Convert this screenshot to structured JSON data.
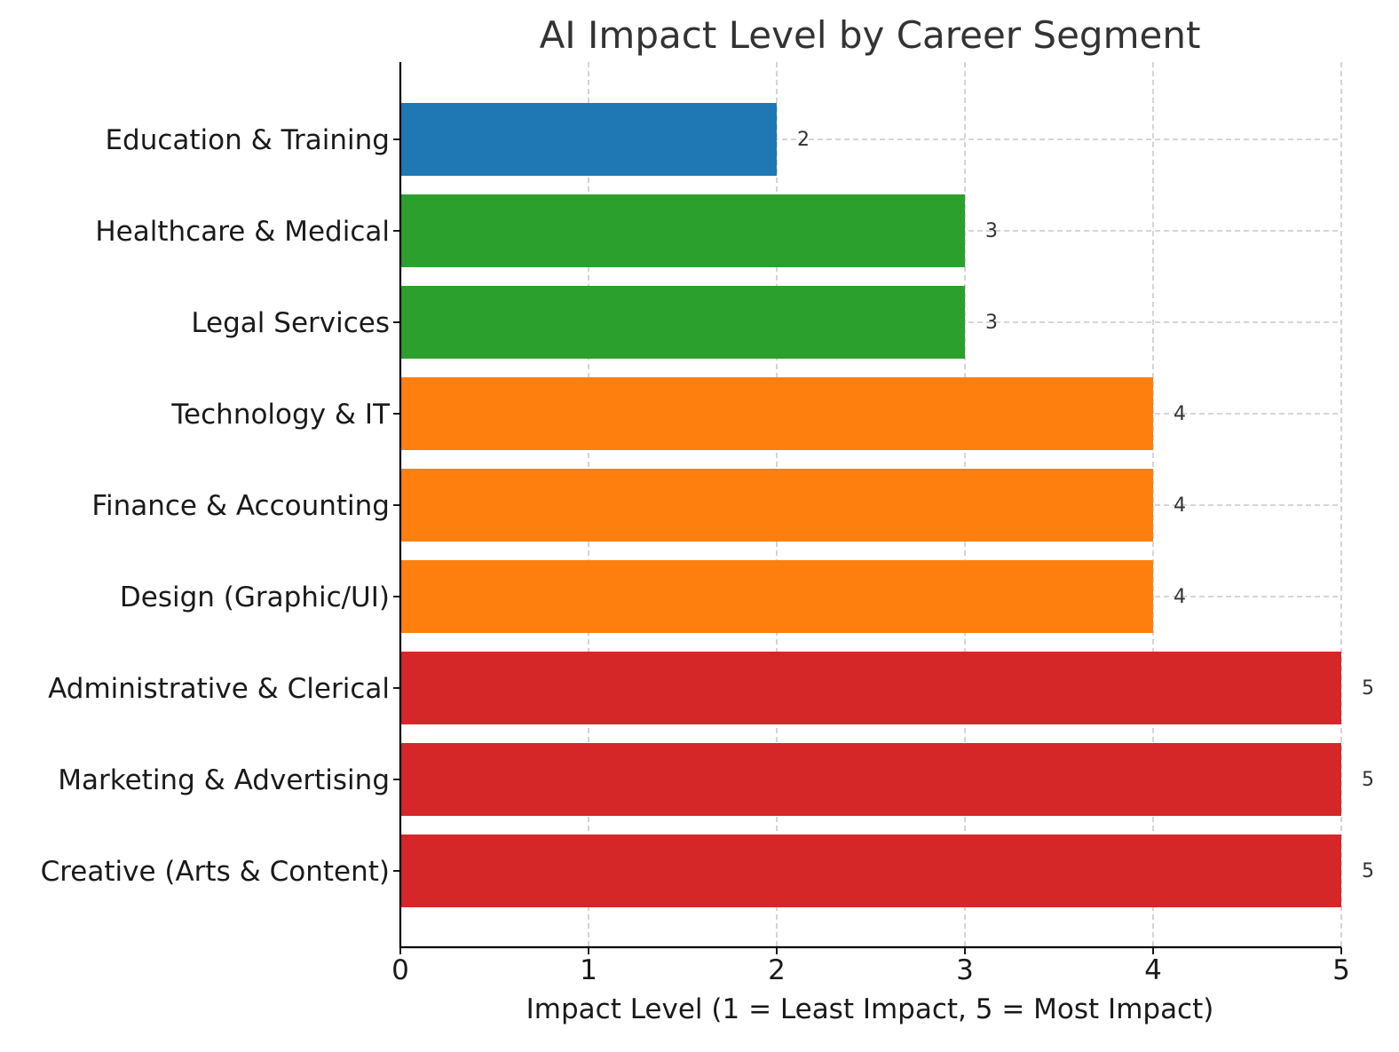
{
  "chart_data": {
    "type": "bar",
    "orientation": "horizontal",
    "title": "AI Impact Level by Career Segment",
    "xlabel": "Impact Level (1 = Least Impact, 5 = Most Impact)",
    "ylabel": "",
    "xlim": [
      0,
      5
    ],
    "xticks": [
      "0",
      "1",
      "2",
      "3",
      "4",
      "5"
    ],
    "grid": true,
    "categories": [
      "Education & Training",
      "Healthcare & Medical",
      "Legal Services",
      "Technology & IT",
      "Finance & Accounting",
      "Design (Graphic/UI)",
      "Administrative & Clerical",
      "Marketing & Advertising",
      "Creative (Arts & Content)"
    ],
    "values": [
      2,
      3,
      3,
      4,
      4,
      4,
      5,
      5,
      5
    ],
    "data_labels": [
      "2",
      "3",
      "3",
      "4",
      "4",
      "4",
      "5",
      "5",
      "5"
    ],
    "level_colors": {
      "2": "#1f77b4",
      "3": "#2ca02c",
      "4": "#ff7f0e",
      "5": "#d62728"
    }
  }
}
